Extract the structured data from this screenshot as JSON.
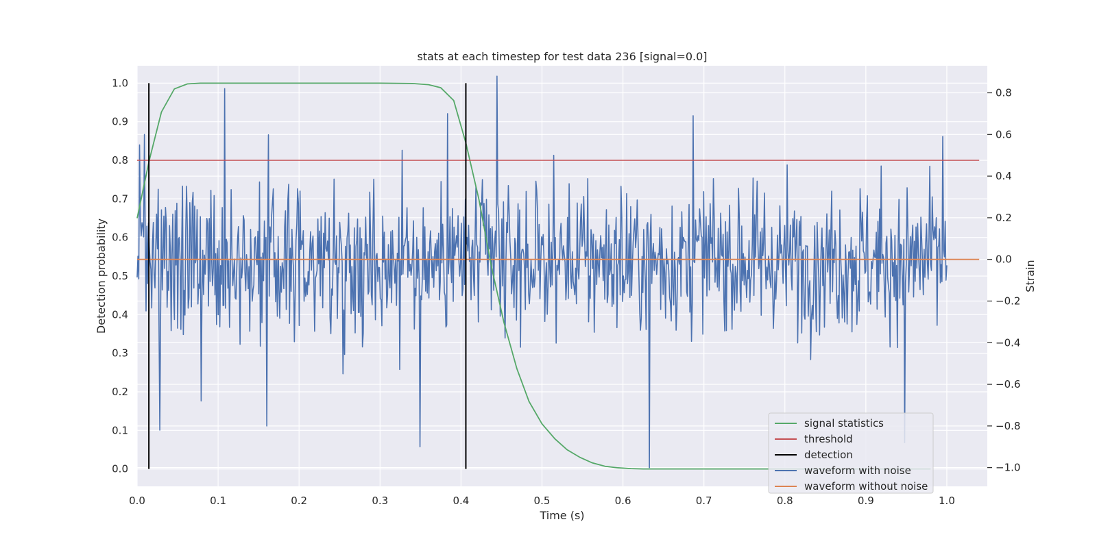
{
  "chart_data": {
    "type": "line",
    "title": "stats at each timestep for test data 236 [signal=0.0]",
    "xlabel": "Time (s)",
    "ylabel_left": "Detection probability",
    "ylabel_right": "Strain",
    "xlim": [
      0.0,
      1.05
    ],
    "ylim_left": [
      -0.045,
      1.045
    ],
    "ylim_right": [
      -1.09,
      0.93
    ],
    "x_ticks": [
      0.0,
      0.1,
      0.2,
      0.3,
      0.4,
      0.5,
      0.6,
      0.7,
      0.8,
      0.9,
      1.0
    ],
    "x_tick_labels": [
      "0.0",
      "0.1",
      "0.2",
      "0.3",
      "0.4",
      "0.5",
      "0.6",
      "0.7",
      "0.8",
      "0.9",
      "1.0"
    ],
    "left_ticks": [
      0.0,
      0.1,
      0.2,
      0.3,
      0.4,
      0.5,
      0.6,
      0.7,
      0.8,
      0.9,
      1.0
    ],
    "left_tick_labels": [
      "0.0",
      "0.1",
      "0.2",
      "0.3",
      "0.4",
      "0.5",
      "0.6",
      "0.7",
      "0.8",
      "0.9",
      "1.0"
    ],
    "right_ticks": [
      -1.0,
      -0.8,
      -0.6,
      -0.4,
      -0.2,
      0.0,
      0.2,
      0.4,
      0.6,
      0.8
    ],
    "right_tick_labels": [
      "−1.0",
      "−0.8",
      "−0.6",
      "−0.4",
      "−0.2",
      "0.0",
      "0.2",
      "0.4",
      "0.6",
      "0.8"
    ],
    "grid": true,
    "legend_position": "lower-right",
    "colors": {
      "background": "#eaeaf2",
      "grid": "#ffffff",
      "signal": "#55a868",
      "threshold": "#c44e52",
      "detection": "#000000",
      "noisy": "#4c72b0",
      "clean": "#dd8452"
    },
    "series": [
      {
        "name": "signal statistics",
        "axis": "left",
        "x": [
          0.0,
          0.015,
          0.03,
          0.046,
          0.062,
          0.078,
          0.094,
          0.11,
          0.2,
          0.3,
          0.34,
          0.36,
          0.375,
          0.391,
          0.406,
          0.422,
          0.438,
          0.453,
          0.469,
          0.484,
          0.5,
          0.516,
          0.531,
          0.547,
          0.562,
          0.578,
          0.594,
          0.61,
          0.625,
          0.7,
          0.8,
          0.9,
          0.98
        ],
        "y": [
          0.65,
          0.8,
          0.925,
          0.985,
          0.998,
          1.0,
          1.0,
          1.0,
          1.0,
          1.0,
          0.999,
          0.996,
          0.988,
          0.955,
          0.845,
          0.7,
          0.52,
          0.38,
          0.26,
          0.175,
          0.117,
          0.078,
          0.05,
          0.03,
          0.016,
          0.007,
          0.003,
          0.001,
          0.0,
          0.0,
          0.0,
          0.0,
          0.0
        ]
      },
      {
        "name": "threshold",
        "axis": "left",
        "x": [
          0.0,
          1.04
        ],
        "y": [
          0.8,
          0.8
        ]
      },
      {
        "name": "detection",
        "axis": "left",
        "x": [
          0.0145,
          0.406
        ],
        "y0": 0.0,
        "y1": 1.0
      },
      {
        "name": "waveform with noise",
        "axis": "right",
        "generated": "dense random noise, 1000 samples over 0–1 s, amplitude ≈0.25 std, extremes from -1.0 to +0.88",
        "spikes": [
          {
            "x": 0.003,
            "y": 0.55
          },
          {
            "x": 0.009,
            "y": 0.6
          },
          {
            "x": 0.028,
            "y": -0.82
          },
          {
            "x": 0.079,
            "y": -0.68
          },
          {
            "x": 0.108,
            "y": 0.82
          },
          {
            "x": 0.16,
            "y": -0.8
          },
          {
            "x": 0.349,
            "y": -0.9
          },
          {
            "x": 0.383,
            "y": 0.7
          },
          {
            "x": 0.444,
            "y": 0.88
          },
          {
            "x": 0.633,
            "y": -1.0
          },
          {
            "x": 0.687,
            "y": 0.69
          },
          {
            "x": 0.948,
            "y": -0.88
          },
          {
            "x": 0.995,
            "y": 0.59
          }
        ]
      },
      {
        "name": "waveform without noise",
        "axis": "right",
        "x": [
          0.0,
          1.04
        ],
        "y": [
          0.0,
          0.0
        ]
      }
    ],
    "legend": [
      "signal statistics",
      "threshold",
      "detection",
      "waveform with noise",
      "waveform without noise"
    ]
  }
}
